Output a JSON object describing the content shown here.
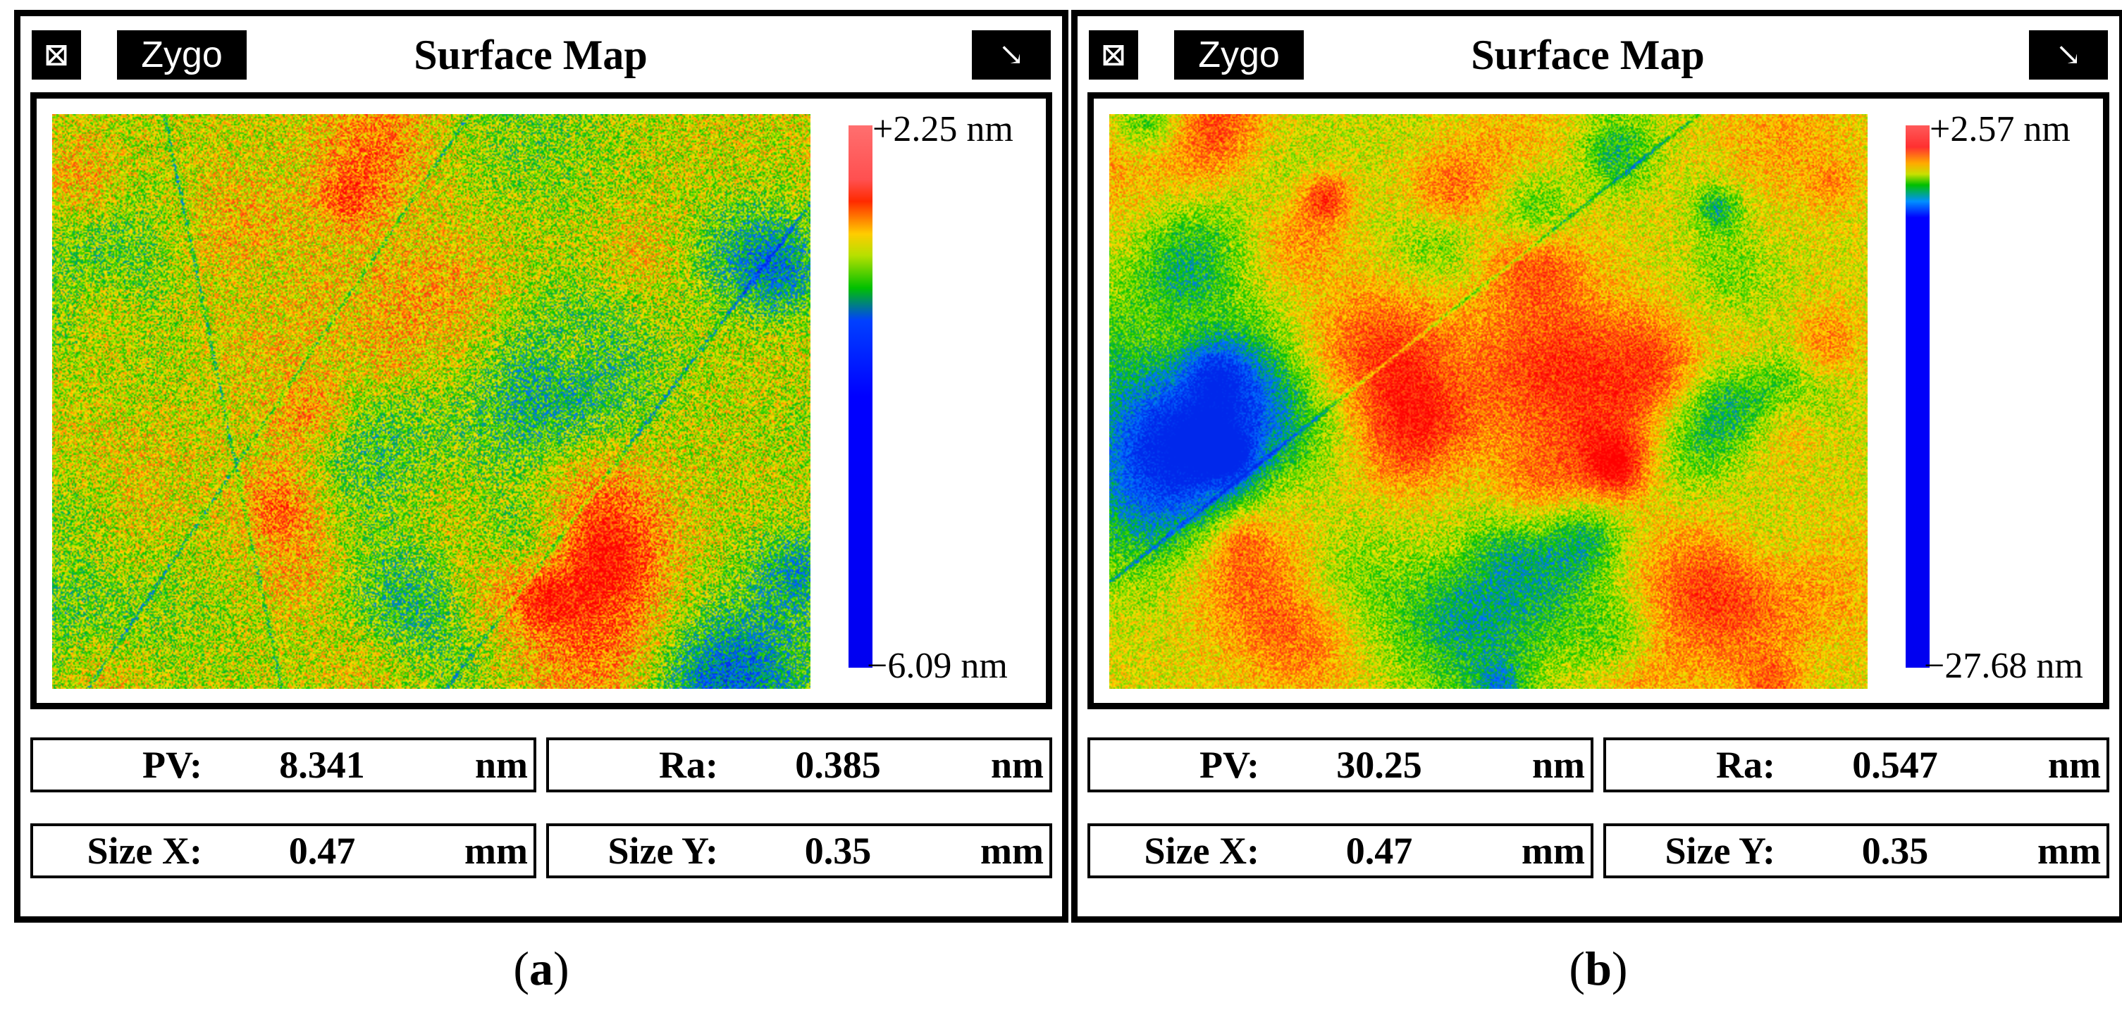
{
  "panels": [
    {
      "id": "a",
      "close_symbol": "⊠",
      "brand": "Zygo",
      "title": "Surface Map",
      "expand_symbol": "↘",
      "colorbar_max": "+2.25 nm",
      "colorbar_min": "−6.09 nm",
      "colorbar_stops": [
        {
          "offset": 0.0,
          "color": "#ff6f6f"
        },
        {
          "offset": 0.1,
          "color": "#ff5050"
        },
        {
          "offset": 0.14,
          "color": "#ff2a00"
        },
        {
          "offset": 0.2,
          "color": "#ffcc00"
        },
        {
          "offset": 0.24,
          "color": "#b6e000"
        },
        {
          "offset": 0.3,
          "color": "#00c000"
        },
        {
          "offset": 0.36,
          "color": "#0040ff"
        },
        {
          "offset": 0.5,
          "color": "#0000ff"
        },
        {
          "offset": 1.0,
          "color": "#0000f0"
        }
      ],
      "pv": {
        "label": "PV:",
        "value": "8.341",
        "unit": "nm"
      },
      "ra": {
        "label": "Ra:",
        "value": "0.385",
        "unit": "nm"
      },
      "size_x": {
        "label": "Size X:",
        "value": "0.47",
        "unit": "mm"
      },
      "size_y": {
        "label": "Size Y:",
        "value": "0.35",
        "unit": "mm"
      },
      "caption_open": "(",
      "caption_letter": "a",
      "caption_close": ")"
    },
    {
      "id": "b",
      "close_symbol": "⊠",
      "brand": "Zygo",
      "title": "Surface Map",
      "expand_symbol": "↘",
      "colorbar_max": "+2.57 nm",
      "colorbar_min": "−27.68 nm",
      "colorbar_stops": [
        {
          "offset": 0.0,
          "color": "#ff5a5a"
        },
        {
          "offset": 0.04,
          "color": "#ff3030"
        },
        {
          "offset": 0.07,
          "color": "#ffaa00"
        },
        {
          "offset": 0.09,
          "color": "#c8e000"
        },
        {
          "offset": 0.11,
          "color": "#00c000"
        },
        {
          "offset": 0.14,
          "color": "#0090ff"
        },
        {
          "offset": 0.17,
          "color": "#0000ff"
        },
        {
          "offset": 1.0,
          "color": "#0000f0"
        }
      ],
      "pv": {
        "label": "PV:",
        "value": "30.25",
        "unit": "nm"
      },
      "ra": {
        "label": "Ra:",
        "value": "0.547",
        "unit": "nm"
      },
      "size_x": {
        "label": "Size X:",
        "value": "0.47",
        "unit": "mm"
      },
      "size_y": {
        "label": "Size Y:",
        "value": "0.35",
        "unit": "mm"
      },
      "caption_open": "(",
      "caption_letter": "b",
      "caption_close": ")"
    }
  ]
}
